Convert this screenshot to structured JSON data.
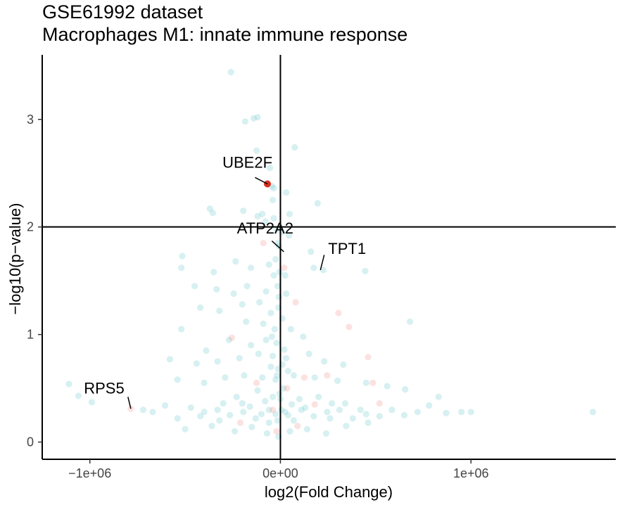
{
  "chart_data": {
    "type": "scatter",
    "title": "GSE61992 dataset",
    "subtitle": "Macrophages M1: innate immune response",
    "xlabel": "log2(Fold Change)",
    "ylabel": "−log10(p−value)",
    "xlim": [
      -1250000,
      1760000
    ],
    "ylim": [
      -0.16,
      3.6
    ],
    "x_ticks": [
      {
        "value": -1000000,
        "label": "−1e+06"
      },
      {
        "value": 0,
        "label": "0e+00"
      },
      {
        "value": 1000000,
        "label": "1e+06"
      }
    ],
    "y_ticks": [
      {
        "value": 0,
        "label": "0"
      },
      {
        "value": 1,
        "label": "1"
      },
      {
        "value": 2,
        "label": "2"
      },
      {
        "value": 3,
        "label": "3"
      }
    ],
    "reference_lines": {
      "vertical_x": 0,
      "horizontal_y": 2
    },
    "grid": false,
    "colors": {
      "teal": "#5ec4c8",
      "salmon": "#f08b82",
      "highlight": "#d7301f"
    },
    "series": [
      {
        "color": "teal",
        "points": [
          [
            -260000,
            3.44
          ],
          [
            -140000,
            3.01
          ],
          [
            -120000,
            3.02
          ],
          [
            -185000,
            2.98
          ],
          [
            -125000,
            2.71
          ],
          [
            -55000,
            2.55
          ],
          [
            -45000,
            2.38
          ],
          [
            -35000,
            2.36
          ],
          [
            75000,
            2.74
          ],
          [
            30000,
            2.32
          ],
          [
            195000,
            2.22
          ],
          [
            -40000,
            2.25
          ],
          [
            -95000,
            2.12
          ],
          [
            -370000,
            2.17
          ],
          [
            -355000,
            2.13
          ],
          [
            -195000,
            2.15
          ],
          [
            -120000,
            2.1
          ],
          [
            -78000,
            2.05
          ],
          [
            -35000,
            2.08
          ],
          [
            48000,
            2.12
          ],
          [
            -20000,
            1.98
          ],
          [
            8000,
            1.95
          ],
          [
            45000,
            1.92
          ],
          [
            -15000,
            1.85
          ],
          [
            -8000,
            1.82
          ],
          [
            160000,
            1.77
          ],
          [
            -25000,
            1.7
          ],
          [
            225000,
            1.6
          ],
          [
            175000,
            1.62
          ],
          [
            445000,
            1.59
          ],
          [
            -515000,
            1.73
          ],
          [
            -520000,
            1.62
          ],
          [
            -350000,
            1.58
          ],
          [
            -235000,
            1.68
          ],
          [
            -155000,
            1.62
          ],
          [
            -60000,
            1.65
          ],
          [
            -5000,
            1.58
          ],
          [
            25000,
            1.55
          ],
          [
            -450000,
            1.45
          ],
          [
            -335000,
            1.42
          ],
          [
            -245000,
            1.38
          ],
          [
            -175000,
            1.45
          ],
          [
            -75000,
            1.4
          ],
          [
            -15000,
            1.45
          ],
          [
            30000,
            1.38
          ],
          [
            -420000,
            1.25
          ],
          [
            -320000,
            1.22
          ],
          [
            -200000,
            1.28
          ],
          [
            -110000,
            1.3
          ],
          [
            -50000,
            1.2
          ],
          [
            -10000,
            1.25
          ],
          [
            -180000,
            1.12
          ],
          [
            -90000,
            1.1
          ],
          [
            -30000,
            1.05
          ],
          [
            -520000,
            1.05
          ],
          [
            680000,
            1.12
          ],
          [
            -390000,
            0.85
          ],
          [
            -270000,
            0.95
          ],
          [
            -155000,
            0.9
          ],
          [
            -75000,
            0.95
          ],
          [
            -20000,
            0.92
          ],
          [
            55000,
            1.05
          ],
          [
            120000,
            0.98
          ],
          [
            -580000,
            0.77
          ],
          [
            -440000,
            0.73
          ],
          [
            -330000,
            0.75
          ],
          [
            -215000,
            0.78
          ],
          [
            -115000,
            0.82
          ],
          [
            -40000,
            0.8
          ],
          [
            30000,
            0.78
          ],
          [
            150000,
            0.82
          ],
          [
            230000,
            0.75
          ],
          [
            330000,
            0.72
          ],
          [
            -540000,
            0.58
          ],
          [
            -400000,
            0.55
          ],
          [
            -290000,
            0.6
          ],
          [
            -190000,
            0.62
          ],
          [
            -95000,
            0.6
          ],
          [
            -25000,
            0.58
          ],
          [
            70000,
            0.62
          ],
          [
            180000,
            0.6
          ],
          [
            300000,
            0.57
          ],
          [
            450000,
            0.55
          ],
          [
            560000,
            0.52
          ],
          [
            655000,
            0.49
          ],
          [
            -1110000,
            0.54
          ],
          [
            -1060000,
            0.43
          ],
          [
            -990000,
            0.37
          ],
          [
            -720000,
            0.3
          ],
          [
            -670000,
            0.28
          ],
          [
            -605000,
            0.34
          ],
          [
            -540000,
            0.22
          ],
          [
            -470000,
            0.32
          ],
          [
            -400000,
            0.28
          ],
          [
            -330000,
            0.3
          ],
          [
            -265000,
            0.25
          ],
          [
            -195000,
            0.28
          ],
          [
            -130000,
            0.22
          ],
          [
            -60000,
            0.3
          ],
          [
            -15000,
            0.2
          ],
          [
            40000,
            0.25
          ],
          [
            110000,
            0.3
          ],
          [
            175000,
            0.24
          ],
          [
            245000,
            0.28
          ],
          [
            310000,
            0.3
          ],
          [
            380000,
            0.22
          ],
          [
            450000,
            0.26
          ],
          [
            520000,
            0.24
          ],
          [
            585000,
            0.3
          ],
          [
            650000,
            0.25
          ],
          [
            720000,
            0.28
          ],
          [
            780000,
            0.34
          ],
          [
            830000,
            0.42
          ],
          [
            870000,
            0.27
          ],
          [
            950000,
            0.28
          ],
          [
            1000000,
            0.28
          ],
          [
            1640000,
            0.28
          ],
          [
            -500000,
            0.12
          ],
          [
            -360000,
            0.15
          ],
          [
            -240000,
            0.1
          ],
          [
            -150000,
            0.14
          ],
          [
            -70000,
            0.08
          ],
          [
            -10000,
            0.05
          ],
          [
            50000,
            0.1
          ],
          [
            140000,
            0.12
          ],
          [
            240000,
            0.08
          ],
          [
            345000,
            0.15
          ],
          [
            460000,
            0.18
          ],
          [
            -80000,
            0.38
          ],
          [
            -40000,
            0.42
          ],
          [
            -5000,
            0.45
          ],
          [
            15000,
            0.5
          ],
          [
            60000,
            0.35
          ],
          [
            100000,
            0.4
          ],
          [
            -120000,
            0.48
          ],
          [
            200000,
            0.42
          ],
          [
            270000,
            0.36
          ],
          [
            -230000,
            0.42
          ],
          [
            -300000,
            0.36
          ],
          [
            -160000,
            0.33
          ],
          [
            -50000,
            0.7
          ],
          [
            -12000,
            0.68
          ],
          [
            10000,
            0.72
          ],
          [
            40000,
            0.66
          ],
          [
            -35000,
            1.55
          ],
          [
            -8000,
            1.35
          ],
          [
            10000,
            1.15
          ],
          [
            -45000,
            0.98
          ],
          [
            20000,
            0.86
          ],
          [
            -18000,
            0.62
          ],
          [
            5000,
            0.3
          ],
          [
            25000,
            0.28
          ],
          [
            -25000,
            0.26
          ],
          [
            0,
            0.4
          ],
          [
            -60000,
            0.18
          ],
          [
            70000,
            0.2
          ],
          [
            -100000,
            0.26
          ],
          [
            130000,
            0.32
          ],
          [
            -200000,
            0.36
          ],
          [
            260000,
            0.22
          ],
          [
            -320000,
            0.2
          ],
          [
            340000,
            0.36
          ],
          [
            -420000,
            0.24
          ],
          [
            420000,
            0.3
          ]
        ]
      },
      {
        "color": "salmon",
        "points": [
          [
            -785000,
            0.31
          ],
          [
            -255000,
            0.97
          ],
          [
            -90000,
            1.85
          ],
          [
            20000,
            1.62
          ],
          [
            80000,
            1.3
          ],
          [
            305000,
            1.2
          ],
          [
            360000,
            1.07
          ],
          [
            460000,
            0.79
          ],
          [
            485000,
            0.55
          ],
          [
            520000,
            0.36
          ],
          [
            -40000,
            0.3
          ],
          [
            35000,
            0.5
          ],
          [
            125000,
            0.6
          ],
          [
            -125000,
            0.55
          ],
          [
            245000,
            0.62
          ],
          [
            -210000,
            0.18
          ],
          [
            180000,
            0.35
          ],
          [
            -20000,
            0.1
          ],
          [
            90000,
            0.15
          ]
        ]
      },
      {
        "color": "highlight",
        "points": [
          [
            -68000,
            2.4
          ]
        ]
      }
    ],
    "annotations": [
      {
        "label": "UBE2F",
        "x": -68000,
        "y": 2.4
      },
      {
        "label": "ATP2A2",
        "x": 18000,
        "y": 1.77
      },
      {
        "label": "TPT1",
        "x": 210000,
        "y": 1.6
      },
      {
        "label": "RPS5",
        "x": -785000,
        "y": 0.31
      }
    ]
  }
}
